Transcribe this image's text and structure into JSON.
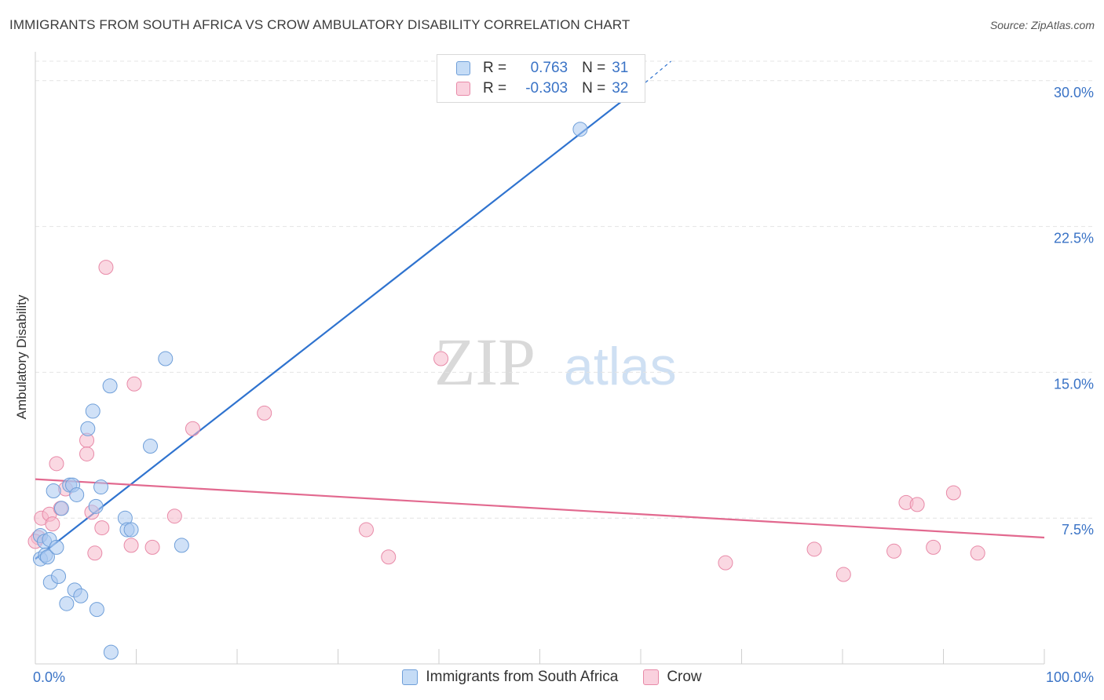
{
  "header": {
    "title": "IMMIGRANTS FROM SOUTH AFRICA VS CROW AMBULATORY DISABILITY CORRELATION CHART",
    "source": "Source: ZipAtlas.com"
  },
  "watermark": {
    "zip": "ZIP",
    "atlas": "atlas"
  },
  "legend": {
    "rows": [
      {
        "r_label": "R =",
        "r_value": "0.763",
        "n_label": "N =",
        "n_value": "31",
        "color": "#a9c8f0"
      },
      {
        "r_label": "R =",
        "r_value": "-0.303",
        "n_label": "N =",
        "n_value": "32",
        "color": "#f6b8cb"
      }
    ]
  },
  "colors": {
    "blue_fill": "#a9c8f0",
    "blue_stroke": "#6f9fd9",
    "blue_line": "#2f73cf",
    "pink_fill": "#f6b8cb",
    "pink_stroke": "#e88aa8",
    "pink_line": "#e2698f",
    "tick_text": "#3a73c6",
    "grid": "#e4e4e4"
  },
  "chart_data": {
    "type": "scatter",
    "title": "IMMIGRANTS FROM SOUTH AFRICA VS CROW AMBULATORY DISABILITY CORRELATION CHART",
    "xlabel": "",
    "ylabel": "Ambulatory Disability",
    "xlim": [
      0,
      100
    ],
    "ylim": [
      0,
      31
    ],
    "x_tick_labels": [
      "0.0%",
      "100.0%"
    ],
    "y_ticks": [
      7.5,
      15.0,
      22.5,
      30.0
    ],
    "y_tick_labels": [
      "7.5%",
      "15.0%",
      "22.5%",
      "30.0%"
    ],
    "grid": "horizontal dashed",
    "legend_position": "top-center",
    "series": [
      {
        "name": "Immigrants from South Africa",
        "color": "#a9c8f0",
        "points": [
          [
            0.5,
            6.6
          ],
          [
            0.5,
            5.4
          ],
          [
            0.9,
            6.3
          ],
          [
            1.0,
            5.6
          ],
          [
            1.2,
            5.5
          ],
          [
            1.4,
            6.4
          ],
          [
            1.5,
            4.2
          ],
          [
            1.8,
            8.9
          ],
          [
            2.1,
            6.0
          ],
          [
            2.3,
            4.5
          ],
          [
            2.6,
            8.0
          ],
          [
            3.1,
            3.1
          ],
          [
            3.4,
            9.2
          ],
          [
            3.7,
            9.2
          ],
          [
            3.9,
            3.8
          ],
          [
            4.1,
            8.7
          ],
          [
            4.5,
            3.5
          ],
          [
            5.2,
            12.1
          ],
          [
            5.7,
            13.0
          ],
          [
            6.0,
            8.1
          ],
          [
            6.1,
            2.8
          ],
          [
            6.5,
            9.1
          ],
          [
            7.4,
            14.3
          ],
          [
            7.5,
            0.6
          ],
          [
            8.9,
            7.5
          ],
          [
            9.1,
            6.9
          ],
          [
            9.5,
            6.9
          ],
          [
            11.4,
            11.2
          ],
          [
            12.9,
            15.7
          ],
          [
            14.5,
            6.1
          ],
          [
            54.0,
            27.5
          ]
        ]
      },
      {
        "name": "Crow",
        "color": "#f6b8cb",
        "points": [
          [
            0.3,
            6.5
          ],
          [
            0.6,
            7.5
          ],
          [
            1.4,
            7.7
          ],
          [
            1.7,
            7.2
          ],
          [
            2.1,
            10.3
          ],
          [
            2.5,
            8.0
          ],
          [
            3.0,
            9.0
          ],
          [
            5.1,
            11.5
          ],
          [
            5.1,
            10.8
          ],
          [
            5.6,
            7.8
          ],
          [
            5.9,
            5.7
          ],
          [
            6.6,
            7.0
          ],
          [
            7.0,
            20.4
          ],
          [
            9.5,
            6.1
          ],
          [
            9.8,
            14.4
          ],
          [
            11.6,
            6.0
          ],
          [
            13.8,
            7.6
          ],
          [
            15.6,
            12.1
          ],
          [
            22.7,
            12.9
          ],
          [
            32.8,
            6.9
          ],
          [
            35.0,
            5.5
          ],
          [
            40.2,
            15.7
          ],
          [
            68.4,
            5.2
          ],
          [
            77.2,
            5.9
          ],
          [
            80.1,
            4.6
          ],
          [
            85.1,
            5.8
          ],
          [
            86.3,
            8.3
          ],
          [
            87.4,
            8.2
          ],
          [
            89.0,
            6.0
          ],
          [
            91.0,
            8.8
          ],
          [
            93.4,
            5.7
          ],
          [
            0.0,
            6.3
          ]
        ]
      }
    ],
    "trend_lines": [
      {
        "series": "Immigrants from South Africa",
        "x": [
          0,
          60
        ],
        "y": [
          5.4,
          29.7
        ],
        "dashed_extension_to": [
          63,
          31
        ]
      },
      {
        "series": "Crow",
        "x": [
          0,
          100
        ],
        "y": [
          9.5,
          6.5
        ]
      }
    ]
  }
}
